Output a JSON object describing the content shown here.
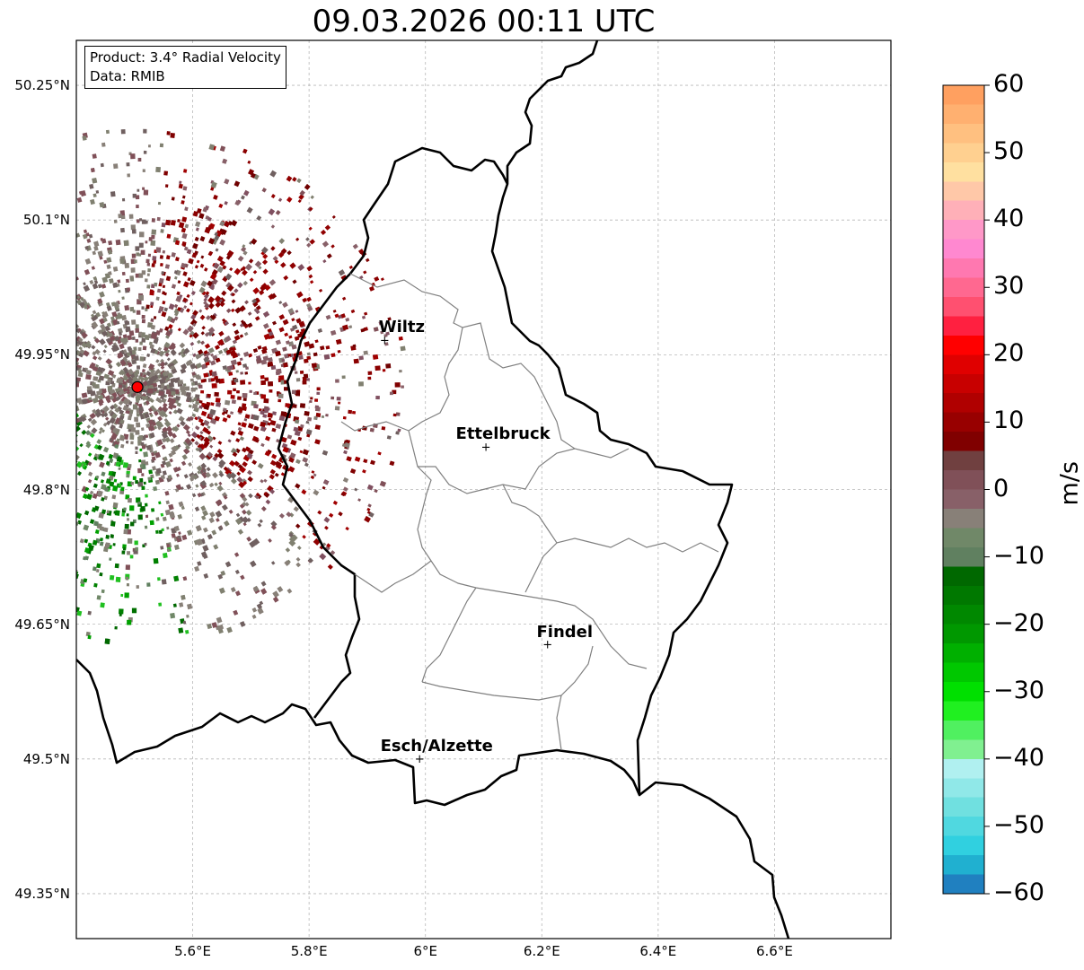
{
  "title": "09.03.2026 00:11 UTC",
  "info": {
    "product": "Product: 3.4° Radial Velocity",
    "data": "Data: RMIB"
  },
  "cities": [
    {
      "name": "Wiltz",
      "lon": 5.93,
      "lat": 49.966
    },
    {
      "name": "Ettelbruck",
      "lon": 6.104,
      "lat": 49.847
    },
    {
      "name": "Findel",
      "lon": 6.21,
      "lat": 49.627
    },
    {
      "name": "Esch/Alzette",
      "lon": 5.99,
      "lat": 49.5
    }
  ],
  "radar_site": {
    "lon": 5.505,
    "lat": 49.914
  },
  "axes": {
    "lon_ticks": [
      {
        "value": 5.6,
        "label": "5.6°E"
      },
      {
        "value": 5.8,
        "label": "5.8°E"
      },
      {
        "value": 6.0,
        "label": "6°E"
      },
      {
        "value": 6.2,
        "label": "6.2°E"
      },
      {
        "value": 6.4,
        "label": "6.4°E"
      },
      {
        "value": 6.6,
        "label": "6.6°E"
      }
    ],
    "lat_ticks": [
      {
        "value": 50.25,
        "label": "50.25°N"
      },
      {
        "value": 50.1,
        "label": "50.1°N"
      },
      {
        "value": 49.95,
        "label": "49.95°N"
      },
      {
        "value": 49.8,
        "label": "49.8°N"
      },
      {
        "value": 49.65,
        "label": "49.65°N"
      },
      {
        "value": 49.5,
        "label": "49.5°N"
      },
      {
        "value": 49.35,
        "label": "49.35°N"
      }
    ],
    "lon_range": [
      5.4,
      6.8
    ],
    "lat_range": [
      49.3,
      50.3
    ]
  },
  "colorbar": {
    "label": "m/s",
    "min": -60,
    "max": 60,
    "ticks": [
      {
        "value": 60,
        "label": "60"
      },
      {
        "value": 50,
        "label": "50"
      },
      {
        "value": 40,
        "label": "40"
      },
      {
        "value": 30,
        "label": "30"
      },
      {
        "value": 20,
        "label": "20"
      },
      {
        "value": 10,
        "label": "10"
      },
      {
        "value": 0,
        "label": "0"
      },
      {
        "value": -10,
        "label": "−10"
      },
      {
        "value": -20,
        "label": "−20"
      },
      {
        "value": -30,
        "label": "−30"
      },
      {
        "value": -40,
        "label": "−40"
      },
      {
        "value": -50,
        "label": "−50"
      },
      {
        "value": -60,
        "label": "−60"
      }
    ],
    "colors": [
      "#ffa060",
      "#ffb070",
      "#ffc080",
      "#ffd090",
      "#ffe0a0",
      "#ffc8a8",
      "#ffb0b8",
      "#ff98c8",
      "#ff88d0",
      "#ff78b0",
      "#ff6890",
      "#ff5070",
      "#ff2040",
      "#ff0000",
      "#e00000",
      "#c80000",
      "#b00000",
      "#980000",
      "#800000",
      "#704040",
      "#805058",
      "#886068",
      "#888078",
      "#708868",
      "#608060",
      "#006800",
      "#007800",
      "#008800",
      "#009800",
      "#00b000",
      "#00c800",
      "#00e000",
      "#20f020",
      "#50f060",
      "#80f090",
      "#b0f0f0",
      "#90e8e8",
      "#70e0e0",
      "#50d8e0",
      "#30d0e0",
      "#20b0d0",
      "#2080c0"
    ]
  }
}
